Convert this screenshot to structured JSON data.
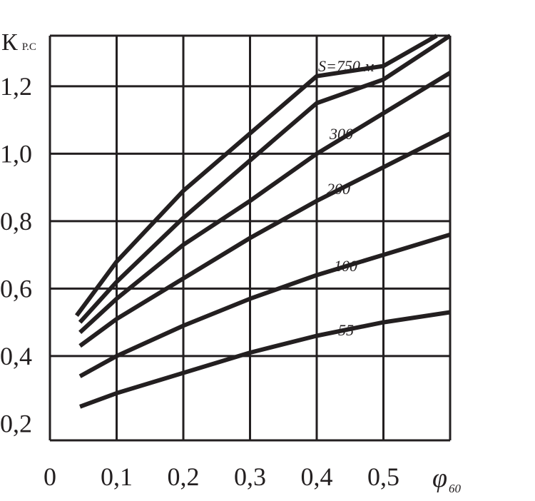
{
  "chart_data": {
    "type": "line",
    "title": "",
    "ylabel_main": "К",
    "ylabel_sub": "Р.С",
    "xlabel_main": "φ",
    "xlabel_sub": "60",
    "xlim": [
      0,
      0.6
    ],
    "ylim": [
      0.15,
      1.35
    ],
    "x_ticks": [
      0,
      0.1,
      0.2,
      0.3,
      0.4,
      0.5
    ],
    "x_tick_labels": [
      "0",
      "0,1",
      "0,2",
      "0,3",
      "0,4",
      "0,5"
    ],
    "y_ticks": [
      0.2,
      0.4,
      0.6,
      0.8,
      1.0,
      1.2
    ],
    "y_tick_labels": [
      "0,2",
      "0,4",
      "0,6",
      "0,8",
      "1,0",
      "1,2"
    ],
    "y_grid_lines": [
      0.4,
      0.6,
      0.8,
      1.0,
      1.2,
      1.35
    ],
    "grid": true,
    "series": [
      {
        "name": "S=750 м",
        "label": "S=750 м",
        "points": [
          [
            0.04,
            0.52
          ],
          [
            0.1,
            0.68
          ],
          [
            0.2,
            0.89
          ],
          [
            0.3,
            1.06
          ],
          [
            0.4,
            1.23
          ],
          [
            0.5,
            1.26
          ],
          [
            0.58,
            1.35
          ]
        ]
      },
      {
        "name": "",
        "label": "",
        "points": [
          [
            0.045,
            0.5
          ],
          [
            0.1,
            0.62
          ],
          [
            0.2,
            0.81
          ],
          [
            0.3,
            0.98
          ],
          [
            0.4,
            1.15
          ],
          [
            0.5,
            1.22
          ],
          [
            0.6,
            1.35
          ]
        ]
      },
      {
        "name": "300",
        "label": "300",
        "points": [
          [
            0.045,
            0.47
          ],
          [
            0.1,
            0.57
          ],
          [
            0.2,
            0.73
          ],
          [
            0.3,
            0.86
          ],
          [
            0.4,
            1.0
          ],
          [
            0.5,
            1.12
          ],
          [
            0.6,
            1.24
          ]
        ]
      },
      {
        "name": "200",
        "label": "200",
        "points": [
          [
            0.045,
            0.43
          ],
          [
            0.1,
            0.51
          ],
          [
            0.2,
            0.63
          ],
          [
            0.3,
            0.75
          ],
          [
            0.4,
            0.86
          ],
          [
            0.5,
            0.96
          ],
          [
            0.6,
            1.06
          ]
        ]
      },
      {
        "name": "100",
        "label": "100",
        "points": [
          [
            0.045,
            0.34
          ],
          [
            0.1,
            0.4
          ],
          [
            0.2,
            0.49
          ],
          [
            0.3,
            0.57
          ],
          [
            0.4,
            0.64
          ],
          [
            0.5,
            0.7
          ],
          [
            0.6,
            0.76
          ]
        ]
      },
      {
        "name": "55",
        "label": "55",
        "points": [
          [
            0.045,
            0.25
          ],
          [
            0.1,
            0.29
          ],
          [
            0.2,
            0.35
          ],
          [
            0.3,
            0.41
          ],
          [
            0.4,
            0.46
          ],
          [
            0.5,
            0.5
          ],
          [
            0.6,
            0.53
          ]
        ]
      }
    ]
  }
}
